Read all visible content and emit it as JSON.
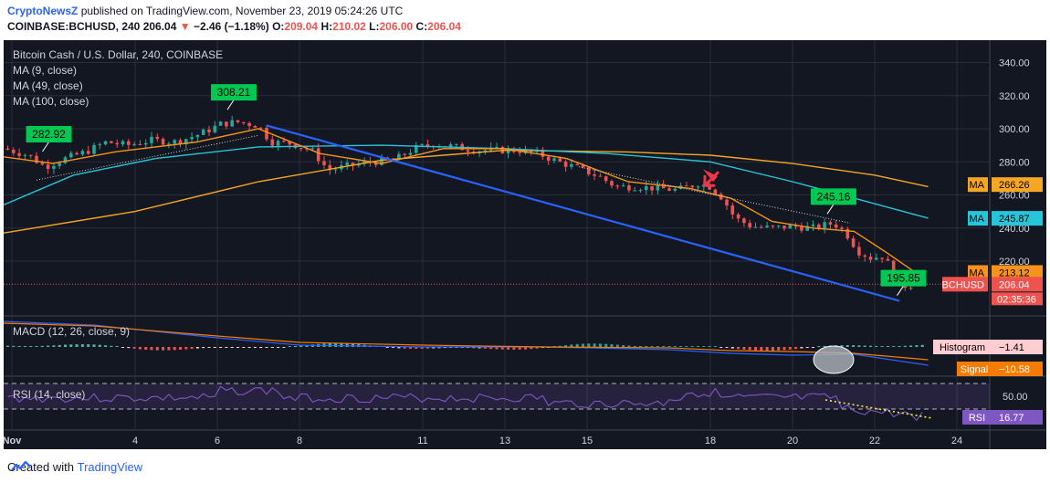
{
  "header": {
    "publisher": "CryptoNewsZ",
    "published_text": "published on TradingView.com, November 23, 2019 05:24:26 UTC",
    "symbol": "COINBASE:BCHUSD, 240",
    "last": "206.04",
    "arrow": "▼",
    "change": "−2.46 (−1.18%)",
    "o_label": "O:",
    "o_value": "209.04",
    "h_label": "H:",
    "h_value": "210.02",
    "l_label": "L:",
    "l_value": "206.00",
    "c_label": "C:",
    "c_value": "206.04"
  },
  "footer": {
    "created_with": "Created with",
    "brand": "TradingView"
  },
  "colors": {
    "bg": "#131722",
    "up": "#26a69a",
    "down": "#ef5350",
    "grid": "#2a2e39",
    "ma9": "#f7931a",
    "ma49": "#26c6da",
    "ma100": "#f5a623",
    "trend": "#2962ff",
    "label": "#00c853",
    "purple": "#7e57c2"
  },
  "chart_data": {
    "type": "candlestick",
    "title": "Bitcoin Cash / U.S. Dollar, 240, COINBASE",
    "legend": [
      "MA (9, close)",
      "MA (49, close)",
      "MA (100, close)"
    ],
    "y_ticks": [
      220,
      240,
      260,
      280,
      300,
      320,
      340
    ],
    "y_tick_labels": [
      "220.00",
      "240.00",
      "260.00",
      "280.00",
      "300.00",
      "320.00",
      "340.00"
    ],
    "ylim": [
      188,
      348
    ],
    "x_ticks": [
      1,
      4,
      6,
      8,
      11,
      13,
      15,
      18,
      20,
      22,
      24
    ],
    "x_tick_labels": [
      "Nov",
      "4",
      "6",
      "8",
      "11",
      "13",
      "15",
      "18",
      "20",
      "22",
      "24"
    ],
    "xlim": [
      0.8,
      24.8
    ],
    "close_anchors": [
      [
        0.8,
        288
      ],
      [
        1.4,
        284
      ],
      [
        1.8,
        277
      ],
      [
        2.3,
        282
      ],
      [
        2.8,
        286
      ],
      [
        3.3,
        292
      ],
      [
        3.8,
        290
      ],
      [
        4.4,
        293
      ],
      [
        5.0,
        292
      ],
      [
        5.6,
        297
      ],
      [
        6.1,
        303
      ],
      [
        6.5,
        304
      ],
      [
        7.0,
        302
      ],
      [
        7.3,
        292
      ],
      [
        7.8,
        291
      ],
      [
        8.3,
        287
      ],
      [
        8.7,
        275
      ],
      [
        9.3,
        278
      ],
      [
        9.8,
        280
      ],
      [
        10.3,
        281
      ],
      [
        10.8,
        288
      ],
      [
        11.3,
        291
      ],
      [
        11.8,
        289
      ],
      [
        12.3,
        287
      ],
      [
        12.8,
        287
      ],
      [
        13.3,
        287
      ],
      [
        13.8,
        285
      ],
      [
        14.3,
        280
      ],
      [
        14.8,
        276
      ],
      [
        15.3,
        271
      ],
      [
        15.7,
        265
      ],
      [
        16.2,
        265
      ],
      [
        16.7,
        264
      ],
      [
        17.2,
        263
      ],
      [
        17.7,
        267
      ],
      [
        18.0,
        265
      ],
      [
        18.3,
        258
      ],
      [
        18.6,
        246
      ],
      [
        19.0,
        241
      ],
      [
        19.5,
        240
      ],
      [
        20.0,
        241
      ],
      [
        20.5,
        240
      ],
      [
        21.0,
        243
      ],
      [
        21.3,
        237
      ],
      [
        21.6,
        226
      ],
      [
        21.9,
        222
      ],
      [
        22.2,
        223
      ],
      [
        22.5,
        212
      ],
      [
        22.7,
        205
      ],
      [
        23.0,
        206
      ]
    ],
    "ma100": [
      [
        0.8,
        237
      ],
      [
        4.0,
        250
      ],
      [
        7.0,
        268
      ],
      [
        10.0,
        281
      ],
      [
        13.0,
        287
      ],
      [
        16.0,
        286
      ],
      [
        18.0,
        284
      ],
      [
        20.0,
        279
      ],
      [
        22.0,
        272
      ],
      [
        23.3,
        265
      ]
    ],
    "ma49": [
      [
        0.8,
        254
      ],
      [
        2.5,
        272
      ],
      [
        4.5,
        282
      ],
      [
        7.0,
        289
      ],
      [
        10.0,
        290
      ],
      [
        13.0,
        288
      ],
      [
        15.5,
        285
      ],
      [
        18.0,
        280
      ],
      [
        20.0,
        268
      ],
      [
        21.5,
        258
      ],
      [
        23.3,
        246
      ]
    ],
    "ma9": [
      [
        0.8,
        283
      ],
      [
        2.0,
        279
      ],
      [
        3.5,
        286
      ],
      [
        5.5,
        292
      ],
      [
        7.0,
        300
      ],
      [
        8.5,
        285
      ],
      [
        10.0,
        279
      ],
      [
        11.5,
        288
      ],
      [
        13.0,
        288
      ],
      [
        14.5,
        282
      ],
      [
        16.0,
        268
      ],
      [
        17.5,
        264
      ],
      [
        18.5,
        258
      ],
      [
        19.5,
        244
      ],
      [
        20.5,
        240
      ],
      [
        21.5,
        238
      ],
      [
        22.3,
        225
      ],
      [
        23.0,
        213
      ]
    ],
    "trend_line": [
      [
        7.2,
        302
      ],
      [
        22.6,
        196
      ]
    ],
    "dotted_lines": [
      [
        [
          1.6,
          269
        ],
        [
          7.0,
          296
        ]
      ],
      [
        [
          14.8,
          277
        ],
        [
          21.4,
          243
        ]
      ]
    ],
    "price_labels": [
      {
        "text": "282.92",
        "x": 2.1,
        "y": 282.9
      },
      {
        "text": "308.21",
        "x": 6.6,
        "y": 308.2
      },
      {
        "text": "245.16",
        "x": 21.2,
        "y": 245.2
      },
      {
        "text": "195.85",
        "x": 22.9,
        "y": 195.9
      }
    ],
    "axis_labels": [
      {
        "tag": "MA",
        "text": "266.26",
        "value": 266.26,
        "color": "#f5a623"
      },
      {
        "tag": "MA",
        "text": "245.87",
        "value": 245.87,
        "color": "#26c6da"
      },
      {
        "tag": "MA",
        "text": "213.12",
        "value": 213.12,
        "color": "#f7931a"
      },
      {
        "tag": "BCHUSD",
        "text": "206.04",
        "value": 206.04,
        "color": "#ef5350"
      }
    ],
    "countdown": "02:35:36",
    "macd": {
      "title": "MACD (12, 26, close, 9)",
      "histogram_label": "Histogram",
      "histogram_value": "−1.41",
      "signal_label": "Signal",
      "signal_value": "−10.58"
    },
    "rsi": {
      "title": "RSI (14, close)",
      "tick_label": "50.00",
      "label": "RSI",
      "value": "16.77"
    }
  }
}
